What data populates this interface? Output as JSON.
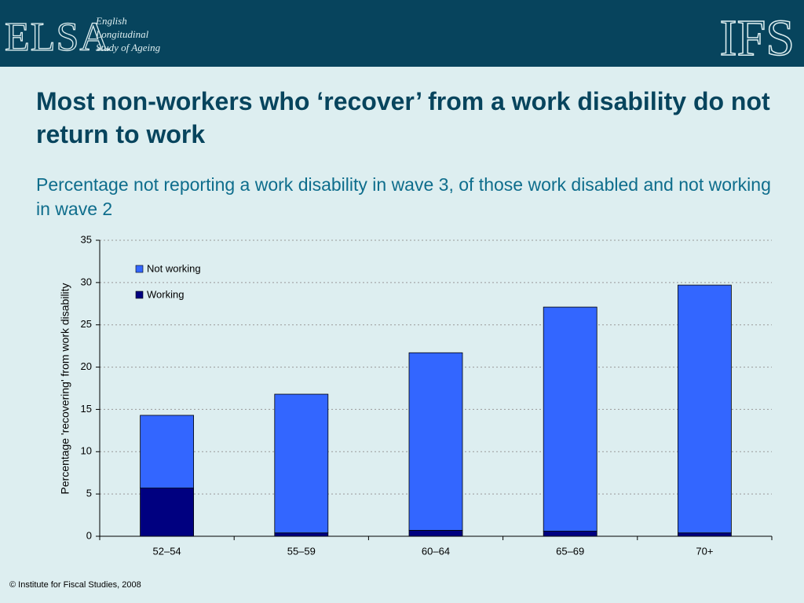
{
  "header": {
    "logo": "ELSA",
    "logo_lines": [
      "English",
      "Longitudinal",
      "Study of Ageing"
    ],
    "right_logo": "IFS"
  },
  "chart_data": {
    "type": "stacked_bar",
    "title": "Most non-workers who ‘recover’ from a work disability do not return to work",
    "subtitle": "Percentage not reporting a work disability in wave 3, of those work disabled and not working in wave 2",
    "ylabel": "Percentage 'recovering' from work disability",
    "categories": [
      "52–54",
      "55–59",
      "60–64",
      "65–69",
      "70+"
    ],
    "series": [
      {
        "name": "Not working",
        "color": "#3366ff",
        "values": [
          8.6,
          16.4,
          21.0,
          26.5,
          29.3
        ]
      },
      {
        "name": "Working",
        "color": "#000080",
        "values": [
          5.7,
          0.4,
          0.7,
          0.6,
          0.4
        ]
      }
    ],
    "ylim": [
      0,
      35
    ],
    "yticks": [
      0,
      5,
      10,
      15,
      20,
      25,
      30,
      35
    ],
    "grid": true,
    "legend": "top-left"
  },
  "footer": "© Institute for Fiscal Studies, 2008"
}
